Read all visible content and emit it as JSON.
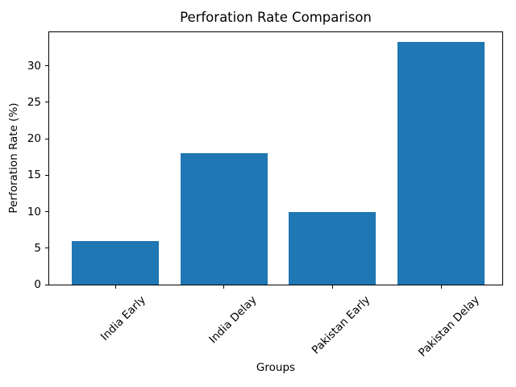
{
  "chart_data": {
    "type": "bar",
    "title": "Perforation Rate Comparison",
    "xlabel": "Groups",
    "ylabel": "Perforation Rate (%)",
    "categories": [
      "India Early",
      "India Delay",
      "Pakistan Early",
      "Pakistan Delay"
    ],
    "values": [
      6.0,
      18.0,
      10.0,
      33.3
    ],
    "yticks": [
      0,
      5,
      10,
      15,
      20,
      25,
      30
    ],
    "ylim": [
      0,
      34.6
    ],
    "xtick_rotation_deg": 45,
    "bar_color": "#1f77b4",
    "axis_color": "#000000",
    "text_color": "#000000",
    "background_color": "#ffffff",
    "grid": false,
    "legend": "none"
  }
}
